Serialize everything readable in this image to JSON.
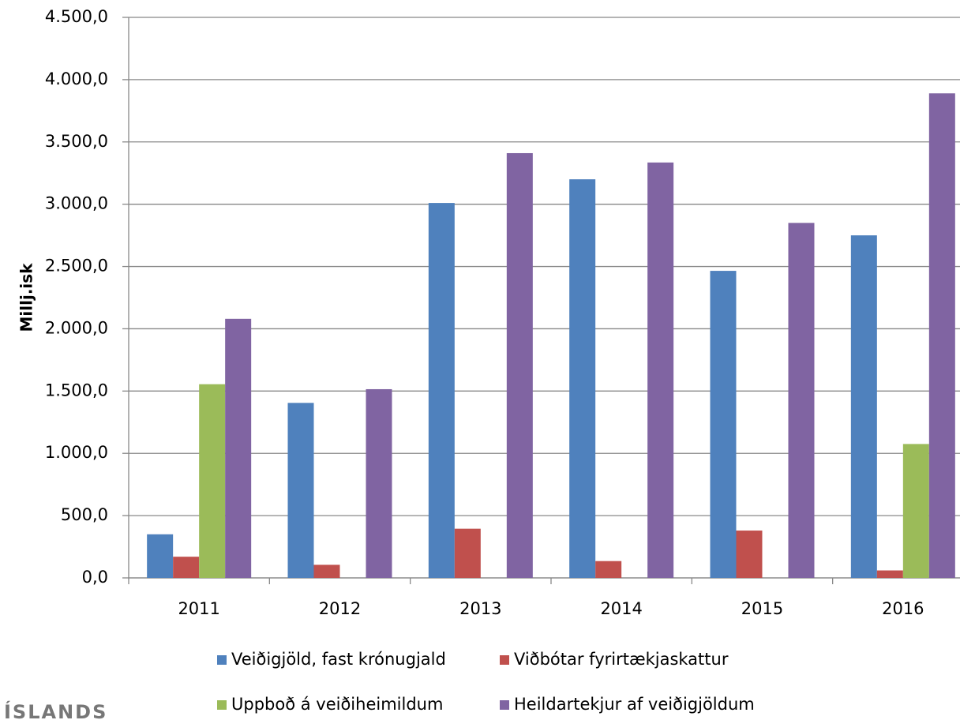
{
  "chart_data": {
    "type": "bar",
    "y_axis_label": "Millj.isk",
    "categories": [
      "2011",
      "2012",
      "2013",
      "2014",
      "2015",
      "2016"
    ],
    "series": [
      {
        "name": "Veiðigjöld, fast krónugjald",
        "color": "#4f81bd",
        "values": [
          350,
          1405,
          3010,
          3200,
          2465,
          2750
        ]
      },
      {
        "name": "Viðbótar fyrirtækjaskattur",
        "color": "#c0504d",
        "values": [
          170,
          105,
          395,
          135,
          380,
          60
        ]
      },
      {
        "name": "Uppboð á veiðiheimildum",
        "color": "#9bbb59",
        "values": [
          1555,
          null,
          null,
          null,
          null,
          1075
        ]
      },
      {
        "name": "Heildartekjur af veiðigjöldum",
        "color": "#8064a2",
        "values": [
          2080,
          1515,
          3410,
          3335,
          2850,
          3890
        ]
      }
    ],
    "ylim": [
      0,
      4500
    ],
    "yticks": [
      {
        "value": 0,
        "label": "0,0"
      },
      {
        "value": 500,
        "label": "500,0"
      },
      {
        "value": 1000,
        "label": "1.000,0"
      },
      {
        "value": 1500,
        "label": "1.500,0"
      },
      {
        "value": 2000,
        "label": "2.000,0"
      },
      {
        "value": 2500,
        "label": "2.500,0"
      },
      {
        "value": 3000,
        "label": "3.000,0"
      },
      {
        "value": 3500,
        "label": "3.500,0"
      },
      {
        "value": 4000,
        "label": "4.000,0"
      },
      {
        "value": 4500,
        "label": "4.500,0"
      }
    ],
    "grid": true,
    "legend": "bottom",
    "logo_text": "ÍSLANDS"
  }
}
